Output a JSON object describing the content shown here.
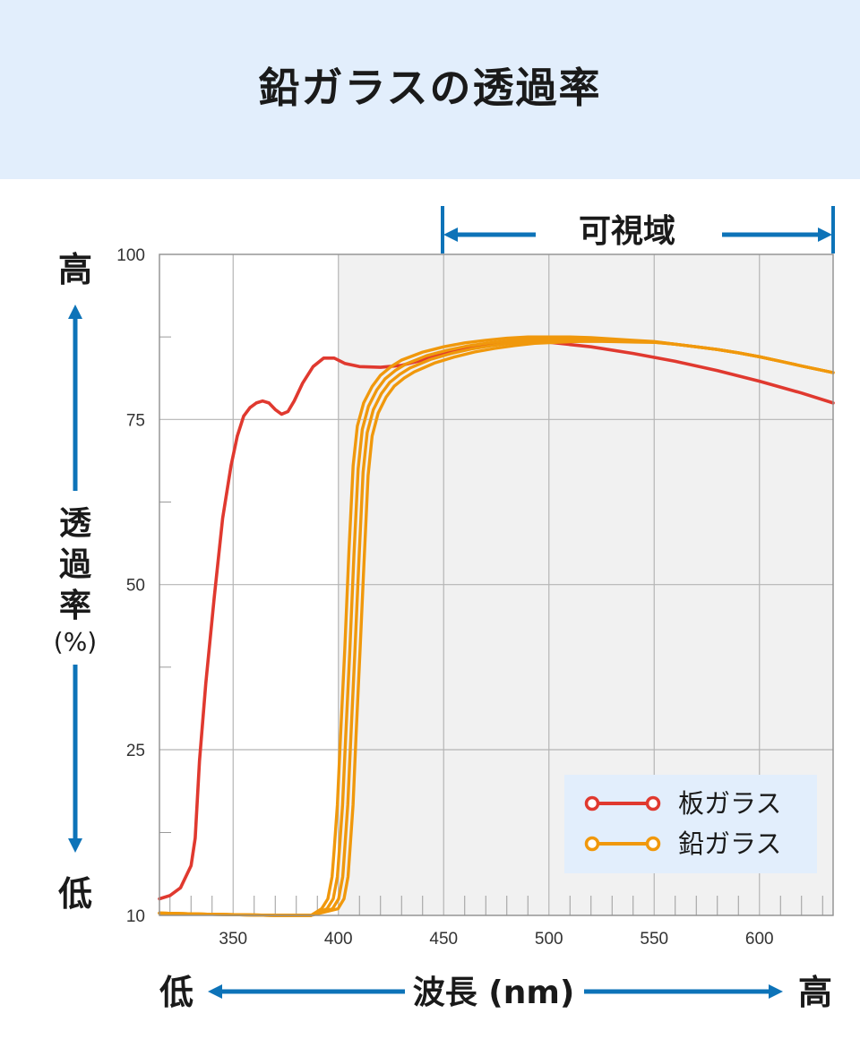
{
  "header": {
    "title": "鉛ガラスの透過率"
  },
  "chart_data": {
    "type": "line",
    "xlim": [
      315,
      635
    ],
    "ylim": [
      10,
      100
    ],
    "x_ticks": [
      350,
      400,
      450,
      500,
      550,
      600
    ],
    "y_ticks": [
      10,
      25,
      50,
      75,
      100
    ],
    "grid": true,
    "visible_band": {
      "label": "可視域",
      "range": [
        450,
        635
      ]
    },
    "y_axis": {
      "high": "高",
      "label_chars": [
        "透",
        "過",
        "率"
      ],
      "unit": "(%)",
      "low": "低"
    },
    "x_axis": {
      "low": "低",
      "label": "波長 (nm)",
      "high": "高"
    },
    "legend_position": "bottom-right",
    "colors": {
      "plate": "#e0392f",
      "lead": "#f0980c",
      "arrow": "#0d73b8"
    },
    "series": [
      {
        "name": "板ガラス",
        "color": "#e0392f",
        "points": [
          [
            315,
            11.5
          ],
          [
            320,
            11.8
          ],
          [
            325,
            12.5
          ],
          [
            330,
            14.5
          ],
          [
            332,
            17
          ],
          [
            334,
            24
          ],
          [
            337,
            35
          ],
          [
            341,
            48
          ],
          [
            345,
            60
          ],
          [
            349,
            68
          ],
          [
            352,
            72.5
          ],
          [
            355,
            75.5
          ],
          [
            358,
            76.8
          ],
          [
            361,
            77.5
          ],
          [
            364,
            77.8
          ],
          [
            367,
            77.5
          ],
          [
            370,
            76.5
          ],
          [
            373,
            75.8
          ],
          [
            376,
            76.2
          ],
          [
            379,
            77.8
          ],
          [
            383,
            80.5
          ],
          [
            388,
            83
          ],
          [
            393,
            84.3
          ],
          [
            398,
            84.3
          ],
          [
            403,
            83.5
          ],
          [
            410,
            83
          ],
          [
            420,
            82.9
          ],
          [
            430,
            83.2
          ],
          [
            440,
            84
          ],
          [
            450,
            85
          ],
          [
            460,
            85.8
          ],
          [
            470,
            86.4
          ],
          [
            480,
            86.8
          ],
          [
            490,
            86.9
          ],
          [
            500,
            86.7
          ],
          [
            520,
            86
          ],
          [
            540,
            85
          ],
          [
            560,
            83.8
          ],
          [
            580,
            82.4
          ],
          [
            600,
            80.8
          ],
          [
            620,
            79
          ],
          [
            635,
            77.5
          ]
        ]
      },
      {
        "name": "鉛ガラス",
        "color": "#f0980c",
        "points": [
          [
            315,
            10.2
          ],
          [
            340,
            10.1
          ],
          [
            370,
            10
          ],
          [
            387,
            10
          ],
          [
            392,
            10.6
          ],
          [
            395,
            11.5
          ],
          [
            397,
            13.5
          ],
          [
            398,
            16
          ],
          [
            399.5,
            20
          ],
          [
            401,
            27
          ],
          [
            403,
            40
          ],
          [
            405,
            55
          ],
          [
            407,
            68
          ],
          [
            409,
            74
          ],
          [
            412,
            77.5
          ],
          [
            416,
            80
          ],
          [
            420,
            81.7
          ],
          [
            425,
            83
          ],
          [
            430,
            84
          ],
          [
            440,
            85.2
          ],
          [
            450,
            86
          ],
          [
            460,
            86.6
          ],
          [
            470,
            87
          ],
          [
            480,
            87.3
          ],
          [
            490,
            87.5
          ],
          [
            500,
            87.5
          ],
          [
            510,
            87.5
          ],
          [
            520,
            87.4
          ],
          [
            530,
            87.2
          ],
          [
            540,
            87
          ],
          [
            550,
            86.8
          ],
          [
            560,
            86.4
          ],
          [
            570,
            86
          ],
          [
            580,
            85.6
          ],
          [
            590,
            85.1
          ],
          [
            600,
            84.5
          ],
          [
            610,
            83.8
          ],
          [
            620,
            83.1
          ],
          [
            635,
            82.1
          ]
        ]
      }
    ]
  }
}
